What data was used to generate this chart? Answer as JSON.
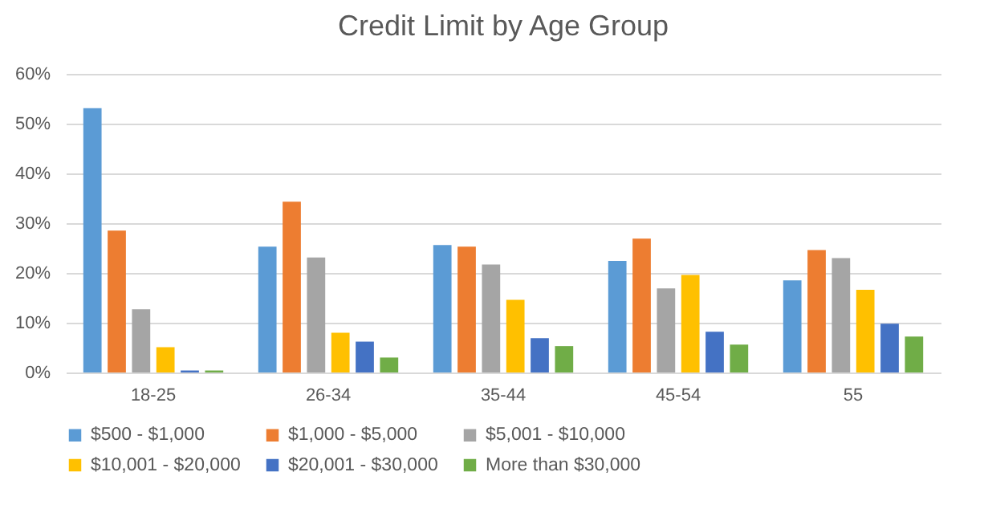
{
  "chart_data": {
    "type": "bar",
    "title": "Credit Limit by Age Group",
    "categories": [
      "18-25",
      "26-34",
      "35-44",
      "45-54",
      "55"
    ],
    "series": [
      {
        "name": "$500 - $1,000",
        "color": "#5b9bd5",
        "values": [
          53.1,
          25.3,
          25.6,
          22.4,
          18.5
        ]
      },
      {
        "name": "$1,000 - $5,000",
        "color": "#ed7d31",
        "values": [
          28.5,
          34.3,
          25.3,
          26.9,
          24.6
        ]
      },
      {
        "name": "$5,001 - $10,000",
        "color": "#a5a5a5",
        "values": [
          12.7,
          23.1,
          21.7,
          16.9,
          23.0
        ]
      },
      {
        "name": "$10,001 - $20,000",
        "color": "#ffc000",
        "values": [
          5.1,
          8.0,
          14.6,
          19.6,
          16.6
        ]
      },
      {
        "name": "$20,001 - $30,000",
        "color": "#4472c4",
        "values": [
          0.4,
          6.2,
          6.9,
          8.2,
          9.8
        ]
      },
      {
        "name": "More than $30,000",
        "color": "#70ad47",
        "values": [
          0.4,
          3.0,
          5.3,
          5.6,
          7.2
        ]
      }
    ],
    "ylim": [
      0,
      60
    ],
    "yticks": [
      {
        "value": 0,
        "label": "0%"
      },
      {
        "value": 10,
        "label": "10%"
      },
      {
        "value": 20,
        "label": "20%"
      },
      {
        "value": 30,
        "label": "30%"
      },
      {
        "value": 40,
        "label": "40%"
      },
      {
        "value": 50,
        "label": "50%"
      },
      {
        "value": 60,
        "label": "60%"
      }
    ],
    "grid": "y",
    "legend": "bottom"
  }
}
